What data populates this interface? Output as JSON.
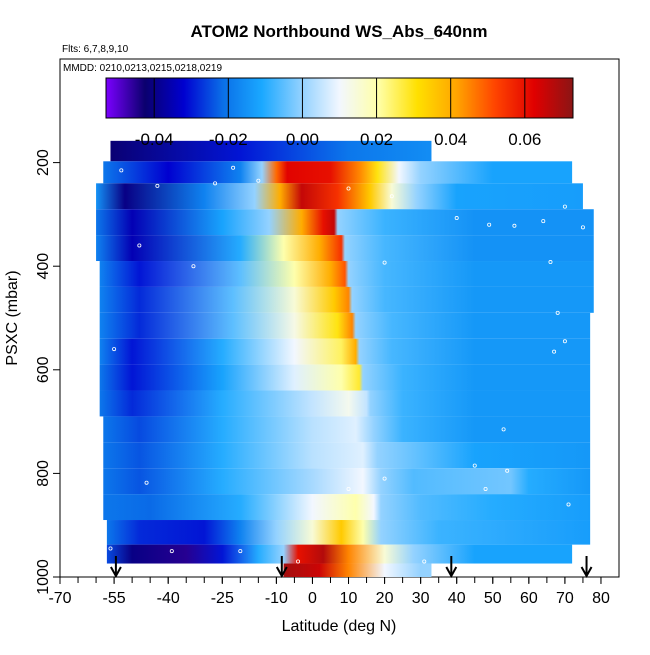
{
  "chart_data": {
    "type": "heatmap",
    "title": "ATOM2 Northbound WS_Abs_640nm",
    "notes": {
      "flights": "Flts: 6,7,8,9,10",
      "dates": "MMDD: 0210,0213,0215,0218,0219"
    },
    "xlabel": "Latitude (deg N)",
    "ylabel": "PSXC (mbar)",
    "xlim": [
      -70,
      85
    ],
    "ylim": [
      1000,
      0
    ],
    "x_ticks": [
      {
        "value": -70,
        "label": "-70"
      },
      {
        "value": -55,
        "label": "-55"
      },
      {
        "value": -40,
        "label": "-40"
      },
      {
        "value": -25,
        "label": "-25"
      },
      {
        "value": -10,
        "label": "-10"
      },
      {
        "value": 0,
        "label": "0"
      },
      {
        "value": 10,
        "label": "10"
      },
      {
        "value": 20,
        "label": "20"
      },
      {
        "value": 30,
        "label": "30"
      },
      {
        "value": 40,
        "label": "40"
      },
      {
        "value": 50,
        "label": "50"
      },
      {
        "value": 60,
        "label": "60"
      },
      {
        "value": 70,
        "label": "70"
      },
      {
        "value": 80,
        "label": "80"
      }
    ],
    "y_ticks": [
      {
        "value": 200,
        "label": "200"
      },
      {
        "value": 400,
        "label": "400"
      },
      {
        "value": 600,
        "label": "600"
      },
      {
        "value": 800,
        "label": "800"
      },
      {
        "value": 1000,
        "label": "1000"
      }
    ],
    "colorbar": {
      "range": [
        -0.053,
        0.073
      ],
      "ticks": [
        {
          "value": -0.04,
          "label": "-0.04"
        },
        {
          "value": -0.02,
          "label": "-0.02"
        },
        {
          "value": 0.0,
          "label": "0.00"
        },
        {
          "value": 0.02,
          "label": "0.02"
        },
        {
          "value": 0.04,
          "label": "0.04"
        },
        {
          "value": 0.06,
          "label": "0.06"
        }
      ],
      "colors": [
        "#7b00ff",
        "#0b006e",
        "#0000d0",
        "#0a6fe8",
        "#1aa8ff",
        "#8fd0ff",
        "#f2f7ff",
        "#ffffa8",
        "#ffe000",
        "#ffa500",
        "#ff4400",
        "#e00000",
        "#8b1515"
      ]
    },
    "rows": [
      {
        "p": 180,
        "xmin": -56,
        "xmax": 33,
        "stops": [
          [
            -56,
            -0.042
          ],
          [
            -20,
            -0.03
          ],
          [
            10,
            -0.02
          ],
          [
            33,
            -0.016
          ]
        ]
      },
      {
        "p": 215,
        "xmin": -58,
        "xmax": 72,
        "stops": [
          [
            -58,
            -0.02
          ],
          [
            -40,
            -0.032
          ],
          [
            -20,
            -0.018
          ],
          [
            -14,
            0.0
          ],
          [
            -10,
            0.048
          ],
          [
            -7,
            0.062
          ],
          [
            5,
            0.06
          ],
          [
            13,
            0.045
          ],
          [
            18,
            0.03
          ],
          [
            24,
            0.01
          ],
          [
            30,
            0.0
          ],
          [
            50,
            -0.012
          ],
          [
            72,
            -0.012
          ]
        ]
      },
      {
        "p": 265,
        "xmin": -60,
        "xmax": 75,
        "stops": [
          [
            -60,
            -0.015
          ],
          [
            -52,
            -0.04
          ],
          [
            -30,
            -0.018
          ],
          [
            -16,
            0.0
          ],
          [
            -9,
            0.04
          ],
          [
            -3,
            0.066
          ],
          [
            7,
            0.055
          ],
          [
            16,
            0.035
          ],
          [
            22,
            0.015
          ],
          [
            29,
            0.0
          ],
          [
            40,
            -0.012
          ],
          [
            75,
            -0.013
          ]
        ]
      },
      {
        "p": 315,
        "xmin": -60,
        "xmax": 78,
        "stops": [
          [
            -60,
            -0.02
          ],
          [
            -50,
            -0.035
          ],
          [
            -25,
            -0.012
          ],
          [
            -12,
            0.0
          ],
          [
            -3,
            0.04
          ],
          [
            3,
            0.06
          ],
          [
            6,
            0.066
          ],
          [
            7,
            0.0
          ],
          [
            20,
            -0.008
          ],
          [
            45,
            -0.015
          ],
          [
            78,
            -0.015
          ]
        ]
      },
      {
        "p": 365,
        "xmin": -60,
        "xmax": 78,
        "stops": [
          [
            -60,
            -0.018
          ],
          [
            -50,
            -0.035
          ],
          [
            -20,
            -0.01
          ],
          [
            -8,
            0.02
          ],
          [
            2,
            0.04
          ],
          [
            8,
            0.055
          ],
          [
            9,
            0.0
          ],
          [
            20,
            -0.007
          ],
          [
            45,
            -0.015
          ],
          [
            78,
            -0.015
          ]
        ]
      },
      {
        "p": 415,
        "xmin": -59,
        "xmax": 78,
        "stops": [
          [
            -59,
            -0.018
          ],
          [
            -48,
            -0.03
          ],
          [
            -20,
            -0.005
          ],
          [
            -5,
            0.02
          ],
          [
            5,
            0.04
          ],
          [
            9,
            0.05
          ],
          [
            10,
            0.0
          ],
          [
            20,
            -0.007
          ],
          [
            45,
            -0.014
          ],
          [
            78,
            -0.014
          ]
        ]
      },
      {
        "p": 465,
        "xmin": -59,
        "xmax": 78,
        "stops": [
          [
            -59,
            -0.018
          ],
          [
            -48,
            -0.028
          ],
          [
            -22,
            -0.005
          ],
          [
            -5,
            0.015
          ],
          [
            6,
            0.035
          ],
          [
            10,
            0.045
          ],
          [
            11,
            0.0
          ],
          [
            20,
            -0.007
          ],
          [
            45,
            -0.014
          ],
          [
            78,
            -0.014
          ]
        ]
      },
      {
        "p": 515,
        "xmin": -59,
        "xmax": 77,
        "stops": [
          [
            -59,
            -0.018
          ],
          [
            -48,
            -0.028
          ],
          [
            -22,
            -0.005
          ],
          [
            -5,
            0.013
          ],
          [
            7,
            0.03
          ],
          [
            11,
            0.045
          ],
          [
            12,
            0.0
          ],
          [
            22,
            -0.007
          ],
          [
            45,
            -0.014
          ],
          [
            77,
            -0.014
          ]
        ]
      },
      {
        "p": 565,
        "xmin": -59,
        "xmax": 77,
        "stops": [
          [
            -59,
            -0.018
          ],
          [
            -50,
            -0.03
          ],
          [
            -25,
            -0.01
          ],
          [
            -5,
            0.01
          ],
          [
            8,
            0.025
          ],
          [
            12,
            0.04
          ],
          [
            13,
            0.0
          ],
          [
            22,
            -0.007
          ],
          [
            45,
            -0.014
          ],
          [
            77,
            -0.014
          ]
        ]
      },
      {
        "p": 615,
        "xmin": -59,
        "xmax": 77,
        "stops": [
          [
            -59,
            -0.02
          ],
          [
            -50,
            -0.03
          ],
          [
            -25,
            -0.012
          ],
          [
            -5,
            0.008
          ],
          [
            8,
            0.02
          ],
          [
            13,
            0.028
          ],
          [
            14,
            0.0
          ],
          [
            25,
            -0.008
          ],
          [
            45,
            -0.014
          ],
          [
            77,
            -0.014
          ]
        ]
      },
      {
        "p": 665,
        "xmin": -59,
        "xmax": 77,
        "stops": [
          [
            -59,
            -0.02
          ],
          [
            -50,
            -0.028
          ],
          [
            -25,
            -0.01
          ],
          [
            0,
            0.005
          ],
          [
            10,
            0.012
          ],
          [
            15,
            0.005
          ],
          [
            16,
            0.0
          ],
          [
            25,
            -0.008
          ],
          [
            45,
            -0.014
          ],
          [
            77,
            -0.014
          ]
        ]
      },
      {
        "p": 715,
        "xmin": -58,
        "xmax": 77,
        "stops": [
          [
            -58,
            -0.02
          ],
          [
            -48,
            -0.025
          ],
          [
            -25,
            -0.01
          ],
          [
            0,
            0.004
          ],
          [
            12,
            0.008
          ],
          [
            17,
            0.0
          ],
          [
            25,
            -0.008
          ],
          [
            45,
            -0.014
          ],
          [
            77,
            -0.014
          ]
        ]
      },
      {
        "p": 765,
        "xmin": -58,
        "xmax": 77,
        "stops": [
          [
            -58,
            -0.02
          ],
          [
            -48,
            -0.024
          ],
          [
            -25,
            -0.01
          ],
          [
            0,
            0.004
          ],
          [
            14,
            0.008
          ],
          [
            18,
            0.0
          ],
          [
            30,
            -0.005
          ],
          [
            45,
            -0.012
          ],
          [
            77,
            -0.014
          ]
        ]
      },
      {
        "p": 815,
        "xmin": -58,
        "xmax": 77,
        "stops": [
          [
            -58,
            -0.02
          ],
          [
            -48,
            -0.024
          ],
          [
            -25,
            -0.01
          ],
          [
            0,
            0.002
          ],
          [
            14,
            0.01
          ],
          [
            19,
            0.0
          ],
          [
            28,
            -0.006
          ],
          [
            55,
            -0.003
          ],
          [
            60,
            -0.01
          ],
          [
            77,
            -0.014
          ]
        ]
      },
      {
        "p": 865,
        "xmin": -58,
        "xmax": 77,
        "stops": [
          [
            -58,
            -0.02
          ],
          [
            -45,
            -0.022
          ],
          [
            -20,
            -0.01
          ],
          [
            0,
            0.01
          ],
          [
            12,
            0.02
          ],
          [
            17,
            0.01
          ],
          [
            19,
            0.0
          ],
          [
            30,
            -0.006
          ],
          [
            50,
            -0.01
          ],
          [
            77,
            -0.013
          ]
        ]
      },
      {
        "p": 915,
        "xmin": -57,
        "xmax": 77,
        "stops": [
          [
            -57,
            -0.02
          ],
          [
            -48,
            -0.028
          ],
          [
            -30,
            -0.03
          ],
          [
            -20,
            -0.018
          ],
          [
            -10,
            0.0
          ],
          [
            0,
            0.015
          ],
          [
            8,
            0.035
          ],
          [
            14,
            0.02
          ],
          [
            19,
            0.0
          ],
          [
            35,
            -0.008
          ],
          [
            77,
            -0.013
          ]
        ]
      },
      {
        "p": 960,
        "xmin": -57,
        "xmax": 72,
        "stops": [
          [
            -57,
            -0.025
          ],
          [
            -50,
            -0.04
          ],
          [
            -35,
            -0.045
          ],
          [
            -25,
            -0.03
          ],
          [
            -15,
            -0.01
          ],
          [
            -8,
            0.0
          ],
          [
            -4,
            0.06
          ],
          [
            3,
            0.068
          ],
          [
            10,
            0.045
          ],
          [
            20,
            0.015
          ],
          [
            28,
            0.0
          ],
          [
            45,
            -0.012
          ],
          [
            72,
            -0.012
          ]
        ]
      },
      {
        "p": 988,
        "xmin": -8,
        "xmax": 33,
        "stops": [
          [
            -8,
            0.07
          ],
          [
            2,
            0.065
          ],
          [
            10,
            0.045
          ],
          [
            20,
            0.01
          ],
          [
            30,
            0.0
          ],
          [
            33,
            0.0
          ]
        ]
      }
    ],
    "sample_points": [
      [
        -53,
        215
      ],
      [
        -15,
        235
      ],
      [
        -27,
        240
      ],
      [
        -22,
        210
      ],
      [
        -43,
        245
      ],
      [
        10,
        250
      ],
      [
        22,
        265
      ],
      [
        70,
        285
      ],
      [
        40,
        307
      ],
      [
        49,
        320
      ],
      [
        56,
        322
      ],
      [
        64,
        313
      ],
      [
        75,
        325
      ],
      [
        -48,
        360
      ],
      [
        20,
        393
      ],
      [
        66,
        392
      ],
      [
        68,
        490
      ],
      [
        70,
        545
      ],
      [
        67,
        565
      ],
      [
        -55,
        560
      ],
      [
        -33,
        400
      ],
      [
        53,
        715
      ],
      [
        45,
        785
      ],
      [
        20,
        810
      ],
      [
        54,
        795
      ],
      [
        48,
        830
      ],
      [
        -46,
        818
      ],
      [
        71,
        860
      ],
      [
        -56,
        945
      ],
      [
        -39,
        950
      ],
      [
        -20,
        950
      ],
      [
        -4,
        970
      ],
      [
        31,
        970
      ],
      [
        10,
        830
      ]
    ],
    "arrows": [
      {
        "lat": -54.5,
        "label": ""
      },
      {
        "lat": -8.5,
        "label": ""
      },
      {
        "lat": 38.5,
        "label": ""
      },
      {
        "lat": 76,
        "label": ""
      }
    ]
  }
}
